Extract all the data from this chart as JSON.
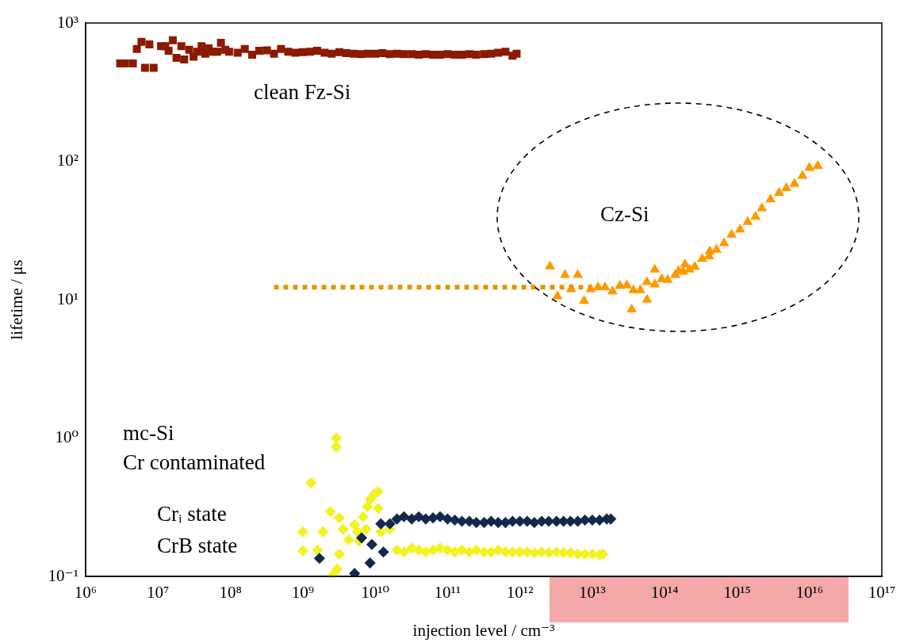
{
  "chart_data": {
    "type": "scatter",
    "xlabel": "injection level / cm⁻³",
    "ylabel": "lifetime / μs",
    "log": "xy",
    "xlim": [
      1000000.0,
      1e+17
    ],
    "ylim": [
      0.1,
      1000
    ],
    "xticks": [
      {
        "value": 1000000.0,
        "label": "10⁶"
      },
      {
        "value": 10000000.0,
        "label": "10⁷"
      },
      {
        "value": 100000000.0,
        "label": "10⁸"
      },
      {
        "value": 1000000000.0,
        "label": "10⁹"
      },
      {
        "value": 10000000000.0,
        "label": "10¹⁰"
      },
      {
        "value": 100000000000.0,
        "label": "10¹¹"
      },
      {
        "value": 1000000000000.0,
        "label": "10¹²"
      },
      {
        "value": 10000000000000.0,
        "label": "10¹³"
      },
      {
        "value": 100000000000000.0,
        "label": "10¹⁴"
      },
      {
        "value": 1000000000000000.0,
        "label": "10¹⁵"
      },
      {
        "value": 1e+16,
        "label": "10¹⁶"
      },
      {
        "value": 1e+17,
        "label": "10¹⁷"
      }
    ],
    "yticks": [
      {
        "value": 0.1,
        "label": "10⁻¹"
      },
      {
        "value": 1,
        "label": "10⁰"
      },
      {
        "value": 10,
        "label": "10¹"
      },
      {
        "value": 100,
        "label": "10²"
      },
      {
        "value": 1000,
        "label": "10³"
      }
    ],
    "legend": false,
    "series": [
      {
        "marker": "square",
        "color": "#8b1a00",
        "x": [
          3000000.0,
          3500000.0,
          4500000.0,
          5100000.0,
          5900000.0,
          6600000.0,
          7600000.0,
          8700000.0,
          11000000.0,
          12600000.0,
          14000000.0,
          16000000.0,
          18000000.0,
          21000000.0,
          23000000.0,
          27000000.0,
          31000000.0,
          35000000.0,
          40000000.0,
          45000000.0,
          50000000.0,
          58000000.0,
          66000000.0,
          74000000.0,
          85000000.0,
          96000000.0,
          126000000.0,
          158000000.0,
          200000000.0,
          250000000.0,
          320000000.0,
          400000000.0,
          500000000.0,
          630000000.0,
          790000000.0,
          1000000000.0,
          1260000000.0,
          1580000000.0,
          2000000000.0,
          2500000000.0,
          3200000000.0,
          4000000000.0,
          5000000000.0,
          6300000000.0,
          7900000000.0,
          10000000000.0,
          12600000000.0,
          15800000000.0,
          20000000000.0,
          25000000000.0,
          32000000000.0,
          40000000000.0,
          50000000000.0,
          63000000000.0,
          79000000000.0,
          100000000000.0,
          126000000000.0,
          158000000000.0,
          200000000000.0,
          250000000000.0,
          320000000000.0,
          400000000000.0,
          500000000000.0,
          630000000000.0,
          790000000000.0,
          900000000000.0
        ],
        "values": [
          510,
          510,
          510,
          650,
          730,
          475,
          700,
          475,
          680,
          680,
          630,
          750,
          560,
          680,
          545,
          640,
          570,
          620,
          680,
          600,
          655,
          620,
          620,
          720,
          640,
          620,
          610,
          650,
          590,
          630,
          635,
          600,
          650,
          620,
          610,
          615,
          620,
          630,
          610,
          600,
          615,
          605,
          600,
          595,
          600,
          600,
          605,
          595,
          600,
          595,
          595,
          590,
          595,
          590,
          590,
          595,
          590,
          590,
          595,
          590,
          595,
          600,
          610,
          620,
          580,
          600
        ]
      },
      {
        "type": "line",
        "marker": "none",
        "line_style": "dotted",
        "color": "#e69500",
        "x": [
          400000000.0,
          9800000000000.0
        ],
        "values": [
          12.3,
          12.3
        ]
      },
      {
        "marker": "triangle",
        "color": "#ff9900",
        "x": [
          2600000000000.0,
          3300000000000.0,
          4200000000000.0,
          5100000000000.0,
          6300000000000.0,
          7700000000000.0,
          9500000000000.0,
          12000000000000.0,
          15000000000000.0,
          19000000000000.0,
          24000000000000.0,
          30000000000000.0,
          37000000000000.0,
          35000000000000.0,
          46000000000000.0,
          57000000000000.0,
          57000000000000.0,
          73000000000000.0,
          73000000000000.0,
          91000000000000.0,
          110000000000000.0,
          140000000000000.0,
          155000000000000.0,
          190000000000000.0,
          180000000000000.0,
          220000000000000.0,
          260000000000000.0,
          330000000000000.0,
          410000000000000.0,
          420000000000000.0,
          520000000000000.0,
          660000000000000.0,
          840000000000000.0,
          1100000000000000.0,
          1400000000000000.0,
          1800000000000000.0,
          2200000000000000.0,
          2900000000000000.0,
          3800000000000000.0,
          4800000000000000.0,
          6200000000000000.0,
          8000000000000000.0,
          1e+16,
          1.3e+16
        ],
        "values": [
          17.4,
          10.6,
          15.1,
          11.9,
          15.1,
          9.8,
          11.9,
          12.3,
          12.3,
          11.5,
          12.6,
          12.7,
          11.7,
          8.5,
          11.7,
          10,
          13.4,
          16.5,
          12.9,
          14.1,
          13.9,
          15.1,
          16.1,
          18,
          15.9,
          16.5,
          17.3,
          19.7,
          20.6,
          22.4,
          23,
          25.6,
          29.5,
          32.2,
          36.5,
          39.8,
          45.8,
          53,
          59.2,
          64,
          68.9,
          78.7,
          89.8,
          92.7
        ]
      },
      {
        "marker": "diamond",
        "color": "#13294b",
        "x": [
          1700000000.0,
          5200000000.0,
          6500000000.0,
          8500000000.0,
          9000000000.0,
          12000000000.0,
          13000000000.0,
          16000000000.0,
          20000000000.0,
          25000000000.0,
          32000000000.0,
          40000000000.0,
          50000000000.0,
          63000000000.0,
          79000000000.0,
          100000000000.0,
          126000000000.0,
          158000000000.0,
          200000000000.0,
          250000000000.0,
          320000000000.0,
          400000000000.0,
          500000000000.0,
          630000000000.0,
          790000000000.0,
          1000000000000.0,
          1260000000000.0,
          1580000000000.0,
          2000000000000.0,
          2500000000000.0,
          3200000000000.0,
          4000000000000.0,
          5000000000000.0,
          6300000000000.0,
          7900000000000.0,
          10000000000000.0,
          12600000000000.0,
          15800000000000.0,
          18000000000000.0
        ],
        "values": [
          0.135,
          0.105,
          0.19,
          0.125,
          0.17,
          0.24,
          0.15,
          0.24,
          0.26,
          0.27,
          0.26,
          0.27,
          0.26,
          0.265,
          0.27,
          0.26,
          0.255,
          0.25,
          0.25,
          0.245,
          0.245,
          0.25,
          0.245,
          0.245,
          0.25,
          0.25,
          0.25,
          0.245,
          0.25,
          0.25,
          0.25,
          0.25,
          0.25,
          0.25,
          0.255,
          0.255,
          0.255,
          0.26,
          0.26
        ]
      },
      {
        "marker": "diamond",
        "color": "#f2f222",
        "x": [
          1000000000.0,
          1000000000.0,
          1300000000.0,
          1600000000.0,
          1900000000.0,
          2400000000.0,
          2600000000.0,
          2900000000.0,
          2900000000.0,
          3000000000.0,
          3200000000.0,
          3200000000.0,
          3600000000.0,
          4300000000.0,
          5200000000.0,
          5700000000.0,
          6000000000.0,
          6800000000.0,
          7500000000.0,
          7800000000.0,
          8500000000.0,
          9800000000.0,
          11000000000.0,
          11000000000.0,
          12000000000.0,
          16000000000.0,
          20000000000.0,
          25000000000.0,
          32000000000.0,
          40000000000.0,
          50000000000.0,
          63000000000.0,
          79000000000.0,
          100000000000.0,
          126000000000.0,
          158000000000.0,
          200000000000.0,
          250000000000.0,
          320000000000.0,
          400000000000.0,
          500000000000.0,
          630000000000.0,
          790000000000.0,
          1000000000000.0,
          1260000000000.0,
          1580000000000.0,
          2000000000000.0,
          2500000000000.0,
          3200000000000.0,
          4000000000000.0,
          5000000000000.0,
          6300000000000.0,
          7900000000000.0,
          10000000000000.0,
          12600000000000.0,
          14000000000000.0
        ],
        "values": [
          0.21,
          0.153,
          0.476,
          0.155,
          0.21,
          0.294,
          0.102,
          1.0,
          0.865,
          0.113,
          0.265,
          0.145,
          0.219,
          0.184,
          0.236,
          0.21,
          0.18,
          0.27,
          0.22,
          0.32,
          0.36,
          0.395,
          0.41,
          0.31,
          0.21,
          0.22,
          0.155,
          0.15,
          0.16,
          0.155,
          0.15,
          0.155,
          0.16,
          0.155,
          0.15,
          0.155,
          0.15,
          0.155,
          0.15,
          0.15,
          0.155,
          0.15,
          0.15,
          0.15,
          0.15,
          0.148,
          0.15,
          0.148,
          0.15,
          0.148,
          0.148,
          0.145,
          0.145,
          0.145,
          0.143,
          0.145
        ]
      }
    ],
    "annotations": [
      "clean Fz-Si",
      "Cz-Si",
      "mc-Si",
      "Cr contaminated",
      "Crᵢ state",
      "CrB state"
    ]
  }
}
